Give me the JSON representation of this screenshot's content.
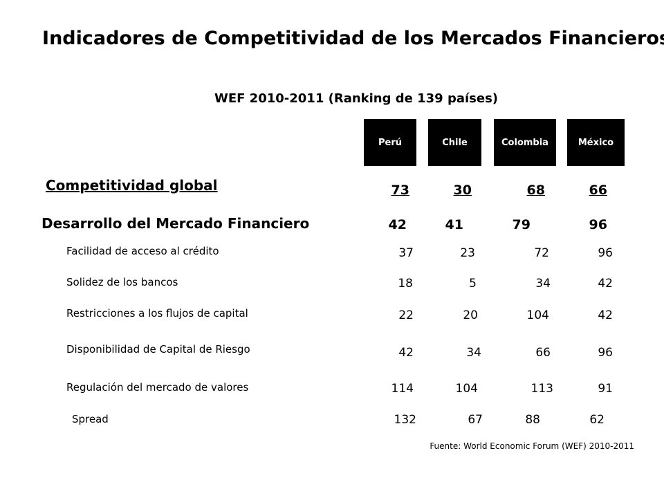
{
  "title": "Indicadores de Competitividad de los Mercados Financieros",
  "subtitle": "WEF 2010-2011  (Ranking de 139 países)",
  "countries": [
    "Perú",
    "Chile",
    "Colombia",
    "México"
  ],
  "rows": [
    {
      "label": "Competitividad global",
      "values": [
        "73",
        "30",
        "68",
        "66"
      ]
    },
    {
      "label": "Desarrollo del Mercado Financiero",
      "values": [
        "42",
        "41",
        "79",
        "96"
      ]
    },
    {
      "label": "Facilidad de acceso al crédito",
      "values": [
        "37",
        "23",
        "72",
        "96"
      ]
    },
    {
      "label": "Solidez de los bancos",
      "values": [
        "18",
        "5",
        "34",
        "42"
      ]
    },
    {
      "label": "Restricciones  a los flujos de capital",
      "values": [
        "22",
        "20",
        "104",
        "42"
      ]
    },
    {
      "label": "Disponibilidad de Capital de Riesgo",
      "values": [
        "42",
        "34",
        "66",
        "96"
      ]
    },
    {
      "label": "Regulación del mercado de valores",
      "values": [
        "114",
        "104",
        "113",
        "91"
      ]
    },
    {
      "label": "Spread",
      "values": [
        "132",
        "67",
        "88",
        "62"
      ]
    }
  ],
  "source": "Fuente: World Economic Forum (WEF) 2010-2011"
}
